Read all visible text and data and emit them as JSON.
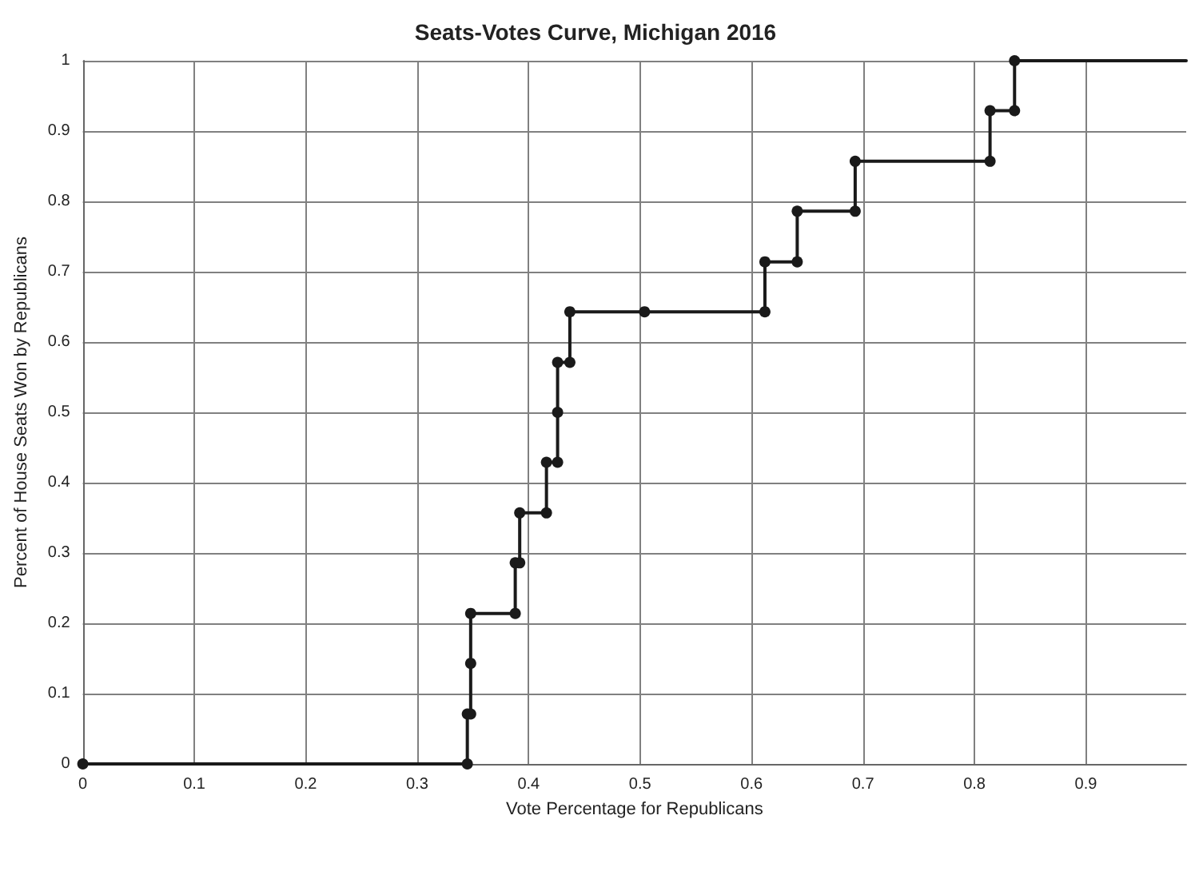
{
  "chart_data": {
    "type": "line",
    "title": "Seats-Votes Curve, Michigan 2016",
    "xlabel": "Vote Percentage for Republicans",
    "ylabel": "Percent of House Seats Won by Republicans",
    "xlim": [
      0,
      0.99
    ],
    "xticks": [
      0,
      0.1,
      0.2,
      0.3,
      0.4,
      0.5,
      0.6,
      0.7,
      0.8,
      0.9
    ],
    "ylim": [
      0,
      1
    ],
    "yticks": [
      0,
      0.1,
      0.2,
      0.3,
      0.4,
      0.5,
      0.6,
      0.7,
      0.8,
      0.9,
      1
    ],
    "grid": true,
    "marker": "circle",
    "line_style": "solid",
    "series": [
      {
        "color": "#1a1a1a",
        "x": [
          0,
          0.345,
          0.345,
          0.348,
          0.348,
          0.348,
          0.388,
          0.388,
          0.392,
          0.392,
          0.416,
          0.416,
          0.426,
          0.426,
          0.426,
          0.437,
          0.437,
          0.504,
          0.612,
          0.612,
          0.641,
          0.641,
          0.693,
          0.693,
          0.814,
          0.814,
          0.836,
          0.836
        ],
        "values": [
          0,
          0,
          0.071,
          0.071,
          0.143,
          0.214,
          0.214,
          0.286,
          0.286,
          0.357,
          0.357,
          0.429,
          0.429,
          0.5,
          0.571,
          0.571,
          0.643,
          0.643,
          0.643,
          0.714,
          0.714,
          0.786,
          0.786,
          0.857,
          0.857,
          0.929,
          0.929,
          1
        ]
      },
      {
        "color": "#1a1a1a",
        "marker": "none",
        "x": [
          0.836,
          0.99
        ],
        "values": [
          1,
          1
        ]
      }
    ]
  }
}
